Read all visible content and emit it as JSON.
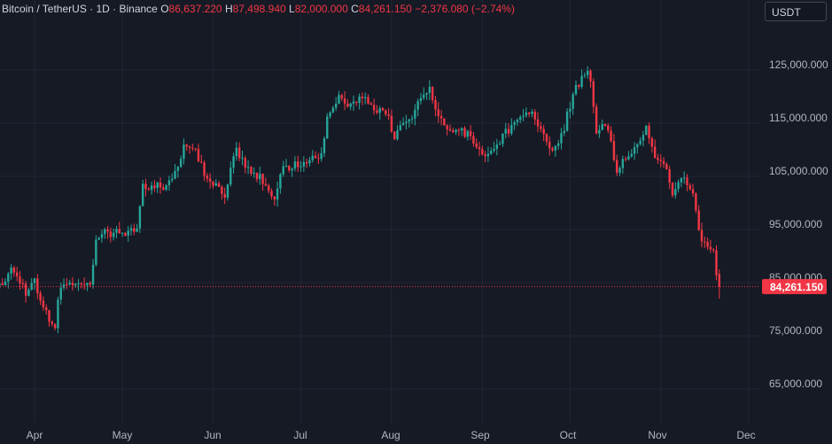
{
  "header": {
    "title": "Bitcoin / TetherUS · 1D · Binance",
    "open_label": "O",
    "open": "86,637.220",
    "high_label": "H",
    "high": "87,498.940",
    "low_label": "L",
    "low": "82,000.000",
    "close_label": "C",
    "close": "84,261.150",
    "change": "−2,376.080 (−2.74%)"
  },
  "currency_button": "USDT",
  "colors": {
    "background": "#161a25",
    "grid": "#232733",
    "up": "#26a69a",
    "down": "#f23645",
    "text": "#b2b5be"
  },
  "chart_data": {
    "type": "candlestick",
    "symbol": "BTCUSDT",
    "y_ticks": [
      "125,000.000",
      "115,000.000",
      "105,000.000",
      "95,000.000",
      "85,000.000",
      "75,000.000",
      "65,000.000"
    ],
    "y_tick_values": [
      125000,
      115000,
      105000,
      95000,
      85000,
      75000,
      65000
    ],
    "ylim": [
      58500,
      131500
    ],
    "x_ticks": [
      "Apr",
      "May",
      "Jun",
      "Jul",
      "Aug",
      "Sep",
      "Oct",
      "Nov",
      "Dec"
    ],
    "x_tick_dates": [
      "2025-04-01",
      "2025-05-01",
      "2025-06-01",
      "2025-07-01",
      "2025-08-01",
      "2025-09-01",
      "2025-10-01",
      "2025-11-01",
      "2025-12-01"
    ],
    "last_price": 84261.15,
    "last_price_label": "84,261.150",
    "grid": true,
    "close_path": [
      [
        "2025-03-20",
        84500
      ],
      [
        "2025-03-24",
        87200
      ],
      [
        "2025-03-26",
        87000
      ],
      [
        "2025-03-29",
        82600
      ],
      [
        "2025-04-01",
        85000
      ],
      [
        "2025-04-03",
        82500
      ],
      [
        "2025-04-06",
        78200
      ],
      [
        "2025-04-08",
        76500
      ],
      [
        "2025-04-09",
        82500
      ],
      [
        "2025-04-12",
        85200
      ],
      [
        "2025-04-16",
        84000
      ],
      [
        "2025-04-20",
        85000
      ],
      [
        "2025-04-22",
        93500
      ],
      [
        "2025-04-25",
        94600
      ],
      [
        "2025-04-30",
        94200
      ],
      [
        "2025-05-06",
        94600
      ],
      [
        "2025-05-08",
        103200
      ],
      [
        "2025-05-12",
        102900
      ],
      [
        "2025-05-16",
        103500
      ],
      [
        "2025-05-20",
        106500
      ],
      [
        "2025-05-22",
        111300
      ],
      [
        "2025-05-26",
        109500
      ],
      [
        "2025-05-30",
        104100
      ],
      [
        "2025-06-05",
        101600
      ],
      [
        "2025-06-09",
        110200
      ],
      [
        "2025-06-13",
        105900
      ],
      [
        "2025-06-17",
        104600
      ],
      [
        "2025-06-22",
        100900
      ],
      [
        "2025-06-24",
        106000
      ],
      [
        "2025-06-30",
        107100
      ],
      [
        "2025-07-04",
        108300
      ],
      [
        "2025-07-08",
        108900
      ],
      [
        "2025-07-10",
        116000
      ],
      [
        "2025-07-14",
        120000
      ],
      [
        "2025-07-18",
        117900
      ],
      [
        "2025-07-22",
        120000
      ],
      [
        "2025-07-26",
        118200
      ],
      [
        "2025-07-31",
        115800
      ],
      [
        "2025-08-02",
        112500
      ],
      [
        "2025-08-08",
        116700
      ],
      [
        "2025-08-14",
        121500
      ],
      [
        "2025-08-16",
        117500
      ],
      [
        "2025-08-20",
        113000
      ],
      [
        "2025-08-24",
        113500
      ],
      [
        "2025-08-28",
        112600
      ],
      [
        "2025-09-01",
        109200
      ],
      [
        "2025-09-05",
        110700
      ],
      [
        "2025-09-10",
        113900
      ],
      [
        "2025-09-14",
        116000
      ],
      [
        "2025-09-18",
        117200
      ],
      [
        "2025-09-22",
        112700
      ],
      [
        "2025-09-25",
        109500
      ],
      [
        "2025-09-29",
        114300
      ],
      [
        "2025-10-02",
        120500
      ],
      [
        "2025-10-06",
        124700
      ],
      [
        "2025-10-08",
        123300
      ],
      [
        "2025-10-10",
        113200
      ],
      [
        "2025-10-13",
        115200
      ],
      [
        "2025-10-17",
        106500
      ],
      [
        "2025-10-21",
        108600
      ],
      [
        "2025-10-27",
        114200
      ],
      [
        "2025-10-29",
        110000
      ],
      [
        "2025-11-03",
        106600
      ],
      [
        "2025-11-05",
        101500
      ],
      [
        "2025-11-09",
        104700
      ],
      [
        "2025-11-12",
        101600
      ],
      [
        "2025-11-14",
        94400
      ],
      [
        "2025-11-17",
        92100
      ],
      [
        "2025-11-19",
        91500
      ],
      [
        "2025-11-20",
        86600
      ],
      [
        "2025-11-21",
        84261
      ]
    ]
  }
}
